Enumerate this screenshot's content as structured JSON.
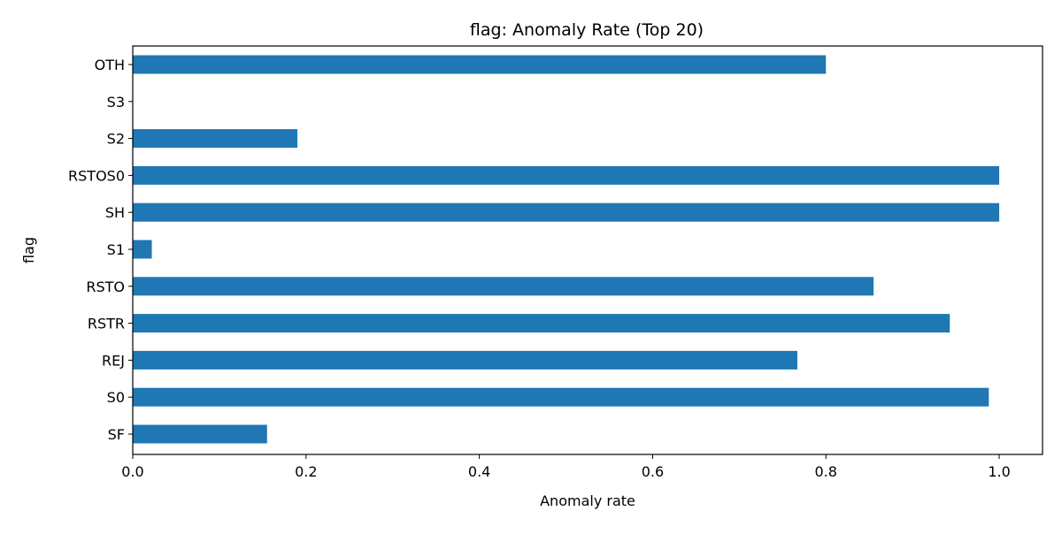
{
  "chart_data": {
    "type": "bar",
    "orientation": "horizontal",
    "title": "flag: Anomaly Rate (Top 20)",
    "xlabel": "Anomaly rate",
    "ylabel": "flag",
    "categories": [
      "OTH",
      "S3",
      "S2",
      "RSTOS0",
      "SH",
      "S1",
      "RSTO",
      "RSTR",
      "REJ",
      "S0",
      "SF"
    ],
    "values": [
      0.8,
      0.0,
      0.19,
      1.0,
      1.0,
      0.022,
      0.855,
      0.943,
      0.767,
      0.988,
      0.155
    ],
    "xlim": [
      0.0,
      1.05
    ],
    "xticks": [
      0.0,
      0.2,
      0.4,
      0.6,
      0.8,
      1.0
    ],
    "xtick_labels": [
      "0.0",
      "0.2",
      "0.4",
      "0.6",
      "0.8",
      "1.0"
    ],
    "grid": false,
    "legend": "none",
    "bar_color": "#1f77b4"
  }
}
